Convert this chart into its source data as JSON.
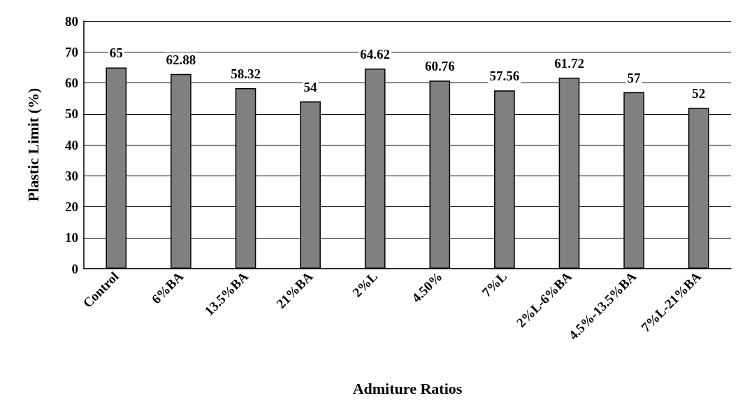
{
  "chart_data": {
    "type": "bar",
    "xlabel": "Admiture Ratios",
    "ylabel": "Plastic Limit (%)",
    "categories": [
      "Control",
      "6%BA",
      "13.5%BA",
      "21%BA",
      "2%L",
      "4.50%",
      "7%L",
      "2%L-6%BA",
      "4.5%-13.5%BA",
      "7%L-21%BA"
    ],
    "values": [
      65,
      62.88,
      58.32,
      54,
      64.62,
      60.76,
      57.56,
      61.72,
      57,
      52
    ],
    "color": "#808080",
    "ylim": [
      0,
      80
    ],
    "yticks": [
      0,
      10,
      20,
      30,
      40,
      50,
      60,
      70,
      80
    ],
    "grid": "y",
    "data_labels": true
  }
}
